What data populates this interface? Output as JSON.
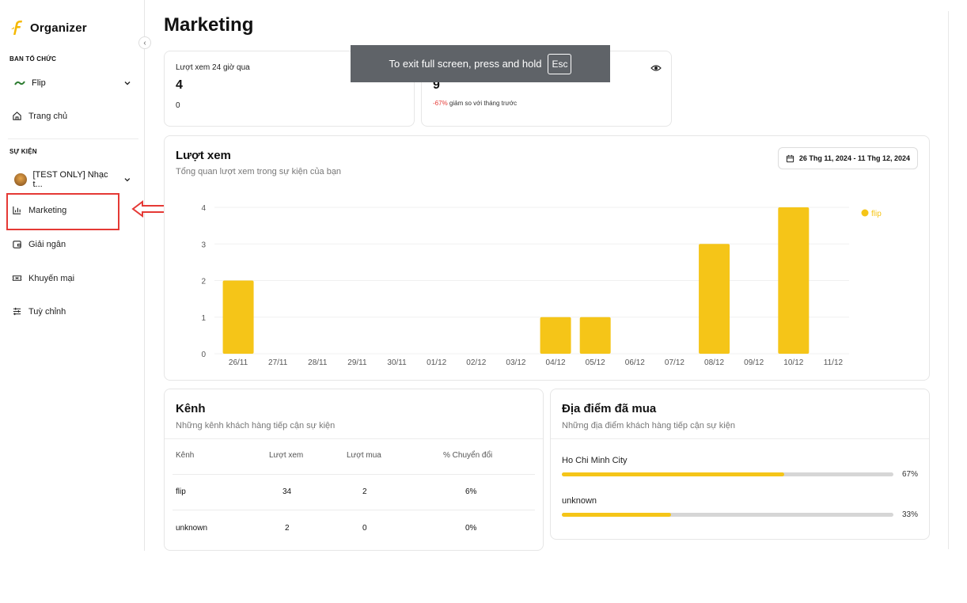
{
  "sidebar": {
    "brand": "Organizer",
    "org_section": "BAN TỔ CHỨC",
    "org_name": "Flip",
    "home": "Trang chủ",
    "event_section": "SỰ KIỆN",
    "event_name": "[TEST ONLY] Nhạc t...",
    "items": [
      {
        "label": "Marketing",
        "icon": "bar-chart-icon"
      },
      {
        "label": "Giải ngân",
        "icon": "wallet-icon"
      },
      {
        "label": "Khuyến mại",
        "icon": "ticket-icon"
      },
      {
        "label": "Tuỳ chỉnh",
        "icon": "sliders-icon"
      }
    ]
  },
  "page": {
    "title": "Marketing"
  },
  "stats": {
    "views_24h_label": "Lượt xem 24 giờ qua",
    "views_24h_value": "4",
    "views_24h_sub": "0",
    "monthly_value": "9",
    "monthly_change": "-67%",
    "monthly_change_text": "giảm so với tháng trước"
  },
  "toast": {
    "text": "To exit full screen, press and hold",
    "key": "Esc"
  },
  "views_chart": {
    "title": "Lượt xem",
    "subtitle": "Tổng quan lượt xem trong sự kiện của bạn",
    "date_range": "26 Thg 11, 2024 - 11 Thg 12, 2024"
  },
  "chart_data": {
    "type": "bar",
    "title": "Lượt xem",
    "categories": [
      "26/11",
      "27/11",
      "28/11",
      "29/11",
      "30/11",
      "01/12",
      "02/12",
      "03/12",
      "04/12",
      "05/12",
      "06/12",
      "07/12",
      "08/12",
      "09/12",
      "10/12",
      "11/12"
    ],
    "series": [
      {
        "name": "flip",
        "values": [
          2,
          0,
          0,
          0,
          0,
          0,
          0,
          0,
          1,
          1,
          0,
          0,
          3,
          0,
          4,
          0
        ]
      }
    ],
    "yticks": [
      0,
      1,
      2,
      3,
      4
    ],
    "ylim": [
      0,
      4
    ],
    "legend": "top-right",
    "color": "#f5c518"
  },
  "channels": {
    "title": "Kênh",
    "subtitle": "Những kênh khách hàng tiếp cận sự kiện",
    "headers": [
      "Kênh",
      "Lượt xem",
      "Lượt mua",
      "% Chuyển đổi"
    ],
    "rows": [
      [
        "flip",
        "34",
        "2",
        "6%"
      ],
      [
        "unknown",
        "2",
        "0",
        "0%"
      ]
    ]
  },
  "locations": {
    "title": "Địa điểm đã mua",
    "subtitle": "Những địa điểm khách hàng tiếp cận sự kiện",
    "items": [
      {
        "name": "Ho Chi Minh City",
        "percent": "67%",
        "fraction": 0.67
      },
      {
        "name": "unknown",
        "percent": "33%",
        "fraction": 0.33
      }
    ]
  }
}
